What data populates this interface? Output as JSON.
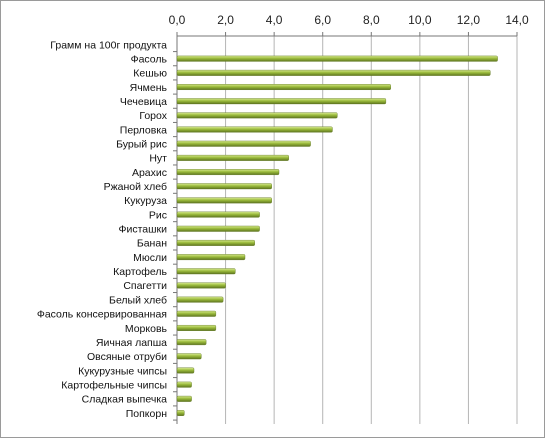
{
  "chart_data": {
    "type": "bar",
    "orientation": "horizontal",
    "title": "",
    "xlabel": "",
    "ylabel": "",
    "xlim": [
      0,
      14
    ],
    "x_axis_position": "top",
    "tick_labels": [
      "0,0",
      "2,0",
      "4,0",
      "6,0",
      "8,0",
      "10,0",
      "12,0",
      "14,0"
    ],
    "grid": true,
    "legend": "none",
    "bar_color": "#9bbb3c",
    "bar_highlight_color": "#d8ea90",
    "bar_shadow_color": "#5e7520",
    "categories": [
      "Грамм на 100г продукта",
      "Фасоль",
      "Кешью",
      "Ячмень",
      "Чечевица",
      "Горох",
      "Перловка",
      "Бурый рис",
      "Нут",
      "Арахис",
      "Ржаной хлеб",
      "Кукуруза",
      "Рис",
      "Фисташки",
      "Банан",
      "Мюсли",
      "Картофель",
      "Спагетти",
      "Белый хлеб",
      "Фасоль консервированная",
      "Морковь",
      "Яичная лапша",
      "Овсяные отруби",
      "Кукурузные чипсы",
      "Картофельные чипсы",
      "Сладкая выпечка",
      "Попкорн"
    ],
    "values": [
      0,
      13.2,
      12.9,
      8.8,
      8.6,
      6.6,
      6.4,
      5.5,
      4.6,
      4.2,
      3.9,
      3.9,
      3.4,
      3.4,
      3.2,
      2.8,
      2.4,
      2.0,
      1.9,
      1.6,
      1.6,
      1.2,
      1.0,
      0.7,
      0.6,
      0.6,
      0.3
    ]
  }
}
